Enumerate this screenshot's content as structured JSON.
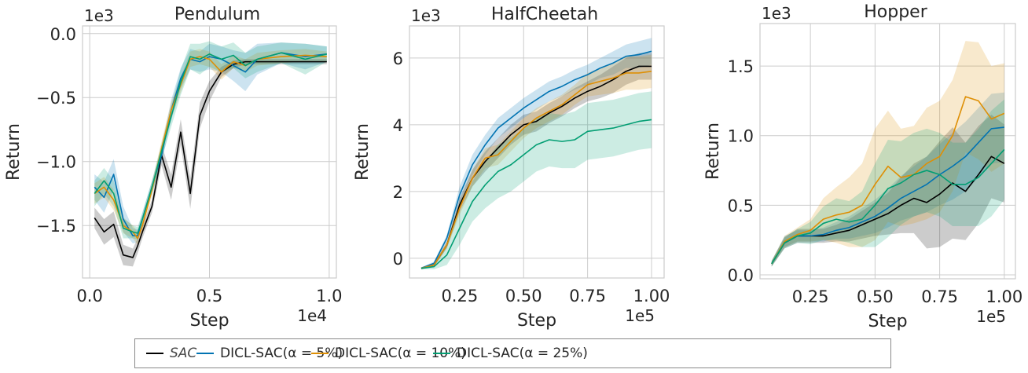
{
  "colors": {
    "SAC": "#000000",
    "DICL-SAC(α = 5%)": "#0173b2",
    "DICL-SAC(α = 10%)": "#de8f05",
    "DICL-SAC(α = 25%)": "#029e73",
    "grid": "#cccccc"
  },
  "legend": {
    "placement": "bottom-center",
    "items": [
      {
        "label": "SAC",
        "color": "#000000",
        "italic": true
      },
      {
        "label": "DICL-SAC(α = 5%)",
        "color": "#0173b2"
      },
      {
        "label": "DICL-SAC(α = 10%)",
        "color": "#de8f05"
      },
      {
        "label": "DICL-SAC(α = 25%)",
        "color": "#029e73"
      }
    ]
  },
  "chart_data": [
    {
      "type": "line",
      "title": "Pendulum",
      "xlabel": "Step",
      "ylabel": "Return",
      "x_offset_text": "1e4",
      "y_offset_text": "1e3",
      "xlim": [
        -0.03,
        1.03
      ],
      "ylim": [
        -1.91,
        0.06
      ],
      "xticks": [
        0.0,
        0.5,
        1.0
      ],
      "xtick_labels": [
        "0.0",
        "0.5",
        "1.0"
      ],
      "yticks": [
        0.0,
        -0.5,
        -1.0,
        -1.5
      ],
      "ytick_labels": [
        "0.0",
        "−0.5",
        "−1.0",
        "−1.5"
      ],
      "grid": true,
      "x": [
        0.02,
        0.06,
        0.1,
        0.14,
        0.18,
        0.2,
        0.22,
        0.26,
        0.3,
        0.34,
        0.38,
        0.42,
        0.46,
        0.5,
        0.55,
        0.6,
        0.65,
        0.7,
        0.8,
        0.9,
        0.99
      ],
      "series": [
        {
          "name": "SAC",
          "values": [
            -1.44,
            -1.55,
            -1.49,
            -1.73,
            -1.75,
            -1.66,
            -1.55,
            -1.35,
            -0.95,
            -1.2,
            -0.77,
            -1.25,
            -0.64,
            -0.45,
            -0.3,
            -0.24,
            -0.22,
            -0.22,
            -0.22,
            -0.22,
            -0.22
          ],
          "band": [
            0.08,
            0.1,
            0.1,
            0.08,
            0.07,
            0.06,
            0.05,
            0.05,
            0.08,
            0.1,
            0.1,
            0.12,
            0.1,
            0.08,
            0.04,
            0.03,
            0.02,
            0.02,
            0.02,
            0.02,
            0.02
          ]
        },
        {
          "name": "DICL-SAC(α = 5%)",
          "values": [
            -1.2,
            -1.28,
            -1.1,
            -1.45,
            -1.58,
            -1.58,
            -1.45,
            -1.2,
            -0.95,
            -0.6,
            -0.35,
            -0.2,
            -0.22,
            -0.18,
            -0.2,
            -0.25,
            -0.3,
            -0.2,
            -0.15,
            -0.18,
            -0.16
          ],
          "band": [
            0.1,
            0.12,
            0.12,
            0.1,
            0.06,
            0.05,
            0.05,
            0.05,
            0.06,
            0.08,
            0.08,
            0.08,
            0.08,
            0.1,
            0.1,
            0.12,
            0.15,
            0.12,
            0.08,
            0.1,
            0.06
          ]
        },
        {
          "name": "DICL-SAC(α = 10%)",
          "values": [
            -1.25,
            -1.2,
            -1.3,
            -1.5,
            -1.55,
            -1.6,
            -1.5,
            -1.22,
            -0.9,
            -0.6,
            -0.4,
            -0.2,
            -0.18,
            -0.2,
            -0.3,
            -0.22,
            -0.25,
            -0.2,
            -0.18,
            -0.17,
            -0.18
          ],
          "band": [
            0.08,
            0.08,
            0.08,
            0.06,
            0.05,
            0.05,
            0.05,
            0.05,
            0.06,
            0.06,
            0.06,
            0.06,
            0.06,
            0.06,
            0.06,
            0.05,
            0.05,
            0.05,
            0.05,
            0.05,
            0.04
          ]
        },
        {
          "name": "DICL-SAC(α = 25%)",
          "values": [
            -1.25,
            -1.15,
            -1.25,
            -1.52,
            -1.55,
            -1.56,
            -1.45,
            -1.2,
            -0.92,
            -0.65,
            -0.38,
            -0.18,
            -0.2,
            -0.16,
            -0.2,
            -0.17,
            -0.25,
            -0.2,
            -0.15,
            -0.2,
            -0.16
          ],
          "band": [
            0.1,
            0.1,
            0.1,
            0.08,
            0.05,
            0.05,
            0.05,
            0.05,
            0.06,
            0.08,
            0.1,
            0.1,
            0.12,
            0.1,
            0.1,
            0.1,
            0.1,
            0.1,
            0.08,
            0.12,
            0.06
          ]
        }
      ]
    },
    {
      "type": "line",
      "title": "HalfCheetah",
      "xlabel": "Step",
      "ylabel": "Return",
      "x_offset_text": "1e5",
      "y_offset_text": "1e3",
      "xlim": [
        0.054,
        1.049
      ],
      "ylim": [
        -0.59,
        6.96
      ],
      "xticks": [
        0.25,
        0.5,
        0.75,
        1.0
      ],
      "xtick_labels": [
        "0.25",
        "0.50",
        "0.75",
        "1.00"
      ],
      "yticks": [
        0,
        2,
        4,
        6
      ],
      "ytick_labels": [
        "0",
        "2",
        "4",
        "6"
      ],
      "grid": true,
      "x": [
        0.1,
        0.15,
        0.2,
        0.25,
        0.3,
        0.35,
        0.4,
        0.45,
        0.5,
        0.55,
        0.6,
        0.65,
        0.7,
        0.75,
        0.8,
        0.85,
        0.9,
        0.95,
        1.0
      ],
      "series": [
        {
          "name": "SAC",
          "values": [
            -0.3,
            -0.2,
            0.4,
            1.6,
            2.4,
            2.9,
            3.3,
            3.7,
            4.0,
            4.1,
            4.35,
            4.55,
            4.8,
            5.0,
            5.15,
            5.35,
            5.6,
            5.75,
            5.75
          ],
          "band": [
            0.03,
            0.05,
            0.1,
            0.2,
            0.25,
            0.3,
            0.3,
            0.3,
            0.3,
            0.3,
            0.3,
            0.3,
            0.3,
            0.3,
            0.35,
            0.4,
            0.4,
            0.4,
            0.4
          ]
        },
        {
          "name": "DICL-SAC(α = 5%)",
          "values": [
            -0.3,
            -0.15,
            0.6,
            1.9,
            2.8,
            3.4,
            3.9,
            4.2,
            4.5,
            4.75,
            5.0,
            5.15,
            5.35,
            5.5,
            5.7,
            5.85,
            6.05,
            6.1,
            6.2
          ],
          "band": [
            0.03,
            0.05,
            0.1,
            0.25,
            0.3,
            0.3,
            0.3,
            0.3,
            0.3,
            0.3,
            0.3,
            0.3,
            0.3,
            0.3,
            0.3,
            0.35,
            0.35,
            0.4,
            0.4
          ]
        },
        {
          "name": "DICL-SAC(α = 10%)",
          "values": [
            -0.3,
            -0.2,
            0.4,
            1.5,
            2.4,
            3.0,
            3.1,
            3.5,
            3.9,
            4.2,
            4.4,
            4.6,
            4.9,
            5.2,
            5.3,
            5.4,
            5.55,
            5.55,
            5.6
          ],
          "band": [
            0.03,
            0.05,
            0.1,
            0.2,
            0.25,
            0.3,
            0.3,
            0.3,
            0.3,
            0.3,
            0.3,
            0.3,
            0.3,
            0.35,
            0.4,
            0.45,
            0.5,
            0.5,
            0.5
          ]
        },
        {
          "name": "DICL-SAC(α = 25%)",
          "values": [
            -0.3,
            -0.25,
            0.1,
            0.9,
            1.7,
            2.2,
            2.6,
            2.8,
            3.1,
            3.4,
            3.55,
            3.5,
            3.55,
            3.8,
            3.85,
            3.9,
            4.0,
            4.1,
            4.15
          ],
          "band": [
            0.03,
            0.08,
            0.3,
            0.5,
            0.6,
            0.7,
            0.8,
            0.8,
            0.8,
            0.8,
            0.8,
            0.8,
            0.85,
            0.85,
            0.85,
            0.85,
            0.85,
            0.85,
            0.85
          ]
        }
      ]
    },
    {
      "type": "line",
      "title": "Hopper",
      "xlabel": "Step",
      "ylabel": "Return",
      "x_offset_text": "1e5",
      "y_offset_text": "1e3",
      "xlim": [
        0.055,
        1.043
      ],
      "ylim": [
        -0.028,
        1.805
      ],
      "xticks": [
        0.25,
        0.5,
        0.75,
        1.0
      ],
      "xtick_labels": [
        "0.25",
        "0.50",
        "0.75",
        "1.00"
      ],
      "yticks": [
        0.0,
        0.5,
        1.0,
        1.5
      ],
      "ytick_labels": [
        "0.0",
        "0.5",
        "1.0",
        "1.5"
      ],
      "grid": true,
      "x": [
        0.1,
        0.15,
        0.2,
        0.25,
        0.3,
        0.35,
        0.4,
        0.45,
        0.5,
        0.55,
        0.6,
        0.65,
        0.7,
        0.75,
        0.8,
        0.85,
        0.9,
        0.95,
        1.0
      ],
      "series": [
        {
          "name": "SAC",
          "values": [
            0.08,
            0.23,
            0.28,
            0.28,
            0.28,
            0.3,
            0.32,
            0.36,
            0.4,
            0.44,
            0.5,
            0.55,
            0.52,
            0.58,
            0.66,
            0.6,
            0.72,
            0.85,
            0.8
          ],
          "band": [
            0.02,
            0.04,
            0.05,
            0.05,
            0.05,
            0.06,
            0.08,
            0.1,
            0.12,
            0.15,
            0.2,
            0.25,
            0.33,
            0.38,
            0.4,
            0.35,
            0.35,
            0.3,
            0.28
          ]
        },
        {
          "name": "DICL-SAC(α = 5%)",
          "values": [
            0.08,
            0.24,
            0.28,
            0.28,
            0.29,
            0.32,
            0.34,
            0.38,
            0.42,
            0.48,
            0.55,
            0.6,
            0.65,
            0.72,
            0.78,
            0.85,
            0.95,
            1.05,
            1.06
          ],
          "band": [
            0.02,
            0.04,
            0.04,
            0.04,
            0.05,
            0.06,
            0.08,
            0.1,
            0.12,
            0.14,
            0.16,
            0.18,
            0.2,
            0.22,
            0.24,
            0.25,
            0.25,
            0.25,
            0.25
          ]
        },
        {
          "name": "DICL-SAC(α = 10%)",
          "values": [
            0.08,
            0.24,
            0.29,
            0.32,
            0.4,
            0.43,
            0.45,
            0.5,
            0.65,
            0.78,
            0.7,
            0.72,
            0.8,
            0.85,
            1.0,
            1.28,
            1.25,
            1.12,
            1.16
          ],
          "band": [
            0.02,
            0.04,
            0.05,
            0.08,
            0.15,
            0.2,
            0.25,
            0.3,
            0.4,
            0.4,
            0.35,
            0.35,
            0.4,
            0.4,
            0.4,
            0.4,
            0.42,
            0.38,
            0.36
          ]
        },
        {
          "name": "DICL-SAC(α = 25%)",
          "values": [
            0.08,
            0.23,
            0.28,
            0.3,
            0.37,
            0.4,
            0.38,
            0.4,
            0.5,
            0.62,
            0.66,
            0.72,
            0.75,
            0.72,
            0.65,
            0.65,
            0.7,
            0.8,
            0.9
          ],
          "band": [
            0.02,
            0.04,
            0.05,
            0.08,
            0.12,
            0.15,
            0.15,
            0.2,
            0.3,
            0.35,
            0.3,
            0.3,
            0.3,
            0.3,
            0.3,
            0.3,
            0.35,
            0.38,
            0.36
          ]
        }
      ]
    }
  ]
}
